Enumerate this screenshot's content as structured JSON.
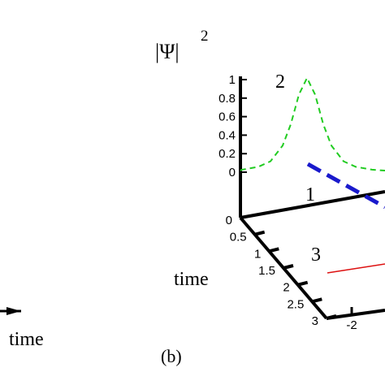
{
  "chart_data": {
    "type": "line",
    "projection": "3d",
    "panel_label": "(b)",
    "z_label_main": "|Ψ|",
    "z_label_exp": "2",
    "time_label": "time",
    "left_panel_time_label": "time",
    "z_ticks": [
      "1",
      "0.8",
      "0.6",
      "0.4",
      "0.2",
      "0"
    ],
    "time_ticks": [
      "0",
      "0.5",
      "1",
      "1.5",
      "2",
      "2.5",
      "3"
    ],
    "x_ticks": [
      "-2"
    ],
    "zlim": [
      0,
      1
    ],
    "time_lim": [
      0,
      3
    ],
    "series": [
      {
        "name": "2",
        "style": "dashed",
        "color": "#22cc22",
        "x": [
          -1.6,
          -1.2,
          -0.9,
          -0.6,
          -0.4,
          -0.2,
          0.0,
          0.2,
          0.4,
          0.6,
          0.9,
          1.2,
          1.6
        ],
        "y": [
          0.01,
          0.04,
          0.1,
          0.27,
          0.5,
          0.82,
          1.0,
          0.82,
          0.5,
          0.27,
          0.1,
          0.04,
          0.01
        ]
      },
      {
        "name": "1",
        "style": "bold-dashed",
        "color": "#1a1acc"
      },
      {
        "name": "3",
        "style": "solid",
        "color": "#dd1111"
      }
    ]
  }
}
